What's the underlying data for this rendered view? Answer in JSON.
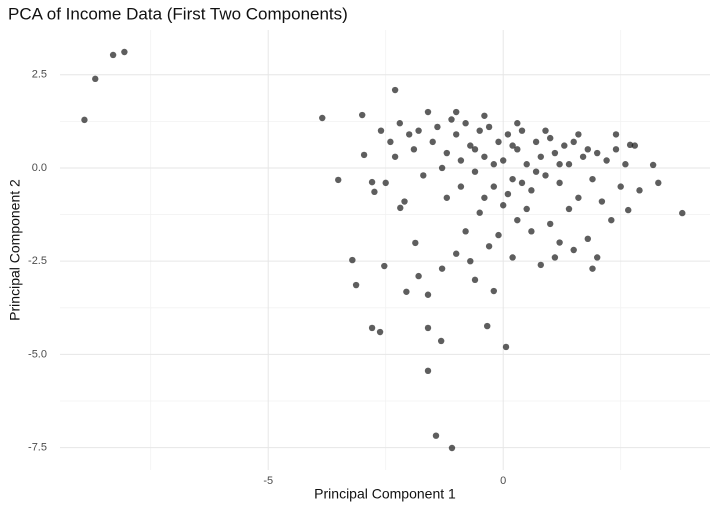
{
  "chart_data": {
    "type": "scatter",
    "title": "PCA of Income Data (First Two Components)",
    "xlabel": "Principal Component 1",
    "ylabel": "Principal Component 2",
    "x": [
      -8.91,
      -8.68,
      -8.3,
      -8.06,
      -3.85,
      -3.51,
      -3.21,
      -3.13,
      -3.0,
      -2.96,
      -2.79,
      -2.74,
      -2.79,
      -2.62,
      -2.53,
      -2.3,
      -2.19,
      -2.06,
      -1.87,
      -1.6,
      -1.6,
      -1.43,
      -1.32,
      -1.09,
      -0.34,
      0.06,
      3.81,
      3.3,
      3.19,
      2.66,
      2.7,
      -2.2,
      -2.0,
      -1.8,
      -1.6,
      -1.5,
      -1.4,
      -1.2,
      -1.1,
      -1.0,
      -0.9,
      -0.8,
      -0.7,
      -0.6,
      -0.5,
      -0.4,
      -0.3,
      -0.2,
      -0.1,
      0,
      0.1,
      0.2,
      0.3,
      0.4,
      0.5,
      0.6,
      0.7,
      0.8,
      0.9,
      1.0,
      1.1,
      1.2,
      1.3,
      1.4,
      1.5,
      1.6,
      1.7,
      1.8,
      1.9,
      2.0,
      2.1,
      2.2,
      2.4,
      2.5,
      2.6,
      2.8,
      2.9,
      -0.5,
      0,
      0.3,
      0.6,
      1.0,
      1.2,
      1.5,
      1.8,
      2.0,
      0.8,
      -0.3,
      -0.8,
      -1.0,
      -1.3,
      -0.6,
      -1.6,
      -1.8,
      -0.2,
      0.2,
      0.5,
      -1.2,
      -1.7,
      -2.3,
      -2.5,
      -2.1,
      -0.9,
      -0.4,
      0.1,
      1.4,
      2.3,
      1.9,
      1.1,
      -0.1,
      -0.7,
      -2.6,
      -2.4,
      -1.9,
      -1.3,
      -0.6,
      0.2,
      0.9,
      1.6,
      2.4,
      0.4,
      -0.2,
      0.7,
      1.2,
      -1.0,
      -0.4,
      0.3
    ],
    "y": [
      1.29,
      2.39,
      3.03,
      3.11,
      1.34,
      -0.32,
      -2.47,
      -3.14,
      1.42,
      0.35,
      -0.38,
      -0.64,
      -4.29,
      -4.4,
      -2.63,
      2.09,
      -1.07,
      -3.32,
      -2.01,
      -4.29,
      -5.44,
      -7.18,
      -4.64,
      -7.51,
      -4.24,
      -4.8,
      -1.21,
      -0.4,
      0.08,
      -1.13,
      0.62,
      1.2,
      0.9,
      1.0,
      1.5,
      0.7,
      1.1,
      0.4,
      1.3,
      0.9,
      0.2,
      1.2,
      0.6,
      -0.1,
      1.0,
      0.3,
      1.1,
      -0.5,
      0.7,
      0.2,
      0.9,
      -0.3,
      0.5,
      1.0,
      0.1,
      -0.6,
      0.7,
      0.3,
      -0.2,
      0.8,
      0.4,
      -0.4,
      0.6,
      0.1,
      0.7,
      -0.8,
      0.3,
      0.5,
      -0.3,
      0.4,
      -0.9,
      0.2,
      0.5,
      -0.5,
      0.1,
      0.6,
      -0.6,
      -1.2,
      -1.0,
      -1.4,
      -1.7,
      -1.5,
      -2.0,
      -2.2,
      -1.9,
      -2.4,
      -2.6,
      -2.1,
      -1.7,
      -2.3,
      -2.7,
      -3.0,
      -3.4,
      -2.9,
      -3.3,
      -2.4,
      -1.1,
      -0.8,
      -0.2,
      0.3,
      -0.4,
      -0.9,
      -0.5,
      -0.8,
      -0.7,
      -1.1,
      -1.4,
      -2.7,
      -2.4,
      -1.8,
      -2.5,
      1.0,
      0.7,
      0.5,
      0.0,
      0.5,
      0.6,
      1.0,
      0.9,
      0.9,
      -0.4,
      0.1,
      -0.1,
      0.1,
      1.5,
      1.4,
      1.2
    ],
    "color": "#1a1a1a",
    "point_alpha": 0.7,
    "xlim": [
      -9.43,
      4.4
    ],
    "ylim": [
      -8.1,
      3.7
    ],
    "xticks": [
      -5,
      0
    ],
    "yticks": [
      2.5,
      {
        "value": 0,
        "label": "0.0"
      },
      -2.5,
      {
        "value": -5,
        "label": "-5.0"
      },
      -7.5
    ],
    "x_minor_grid": [
      -7.5,
      -2.5,
      2.5
    ],
    "y_minor_grid": [
      1.25,
      -1.25,
      -3.75,
      -6.25
    ],
    "grid": true
  }
}
